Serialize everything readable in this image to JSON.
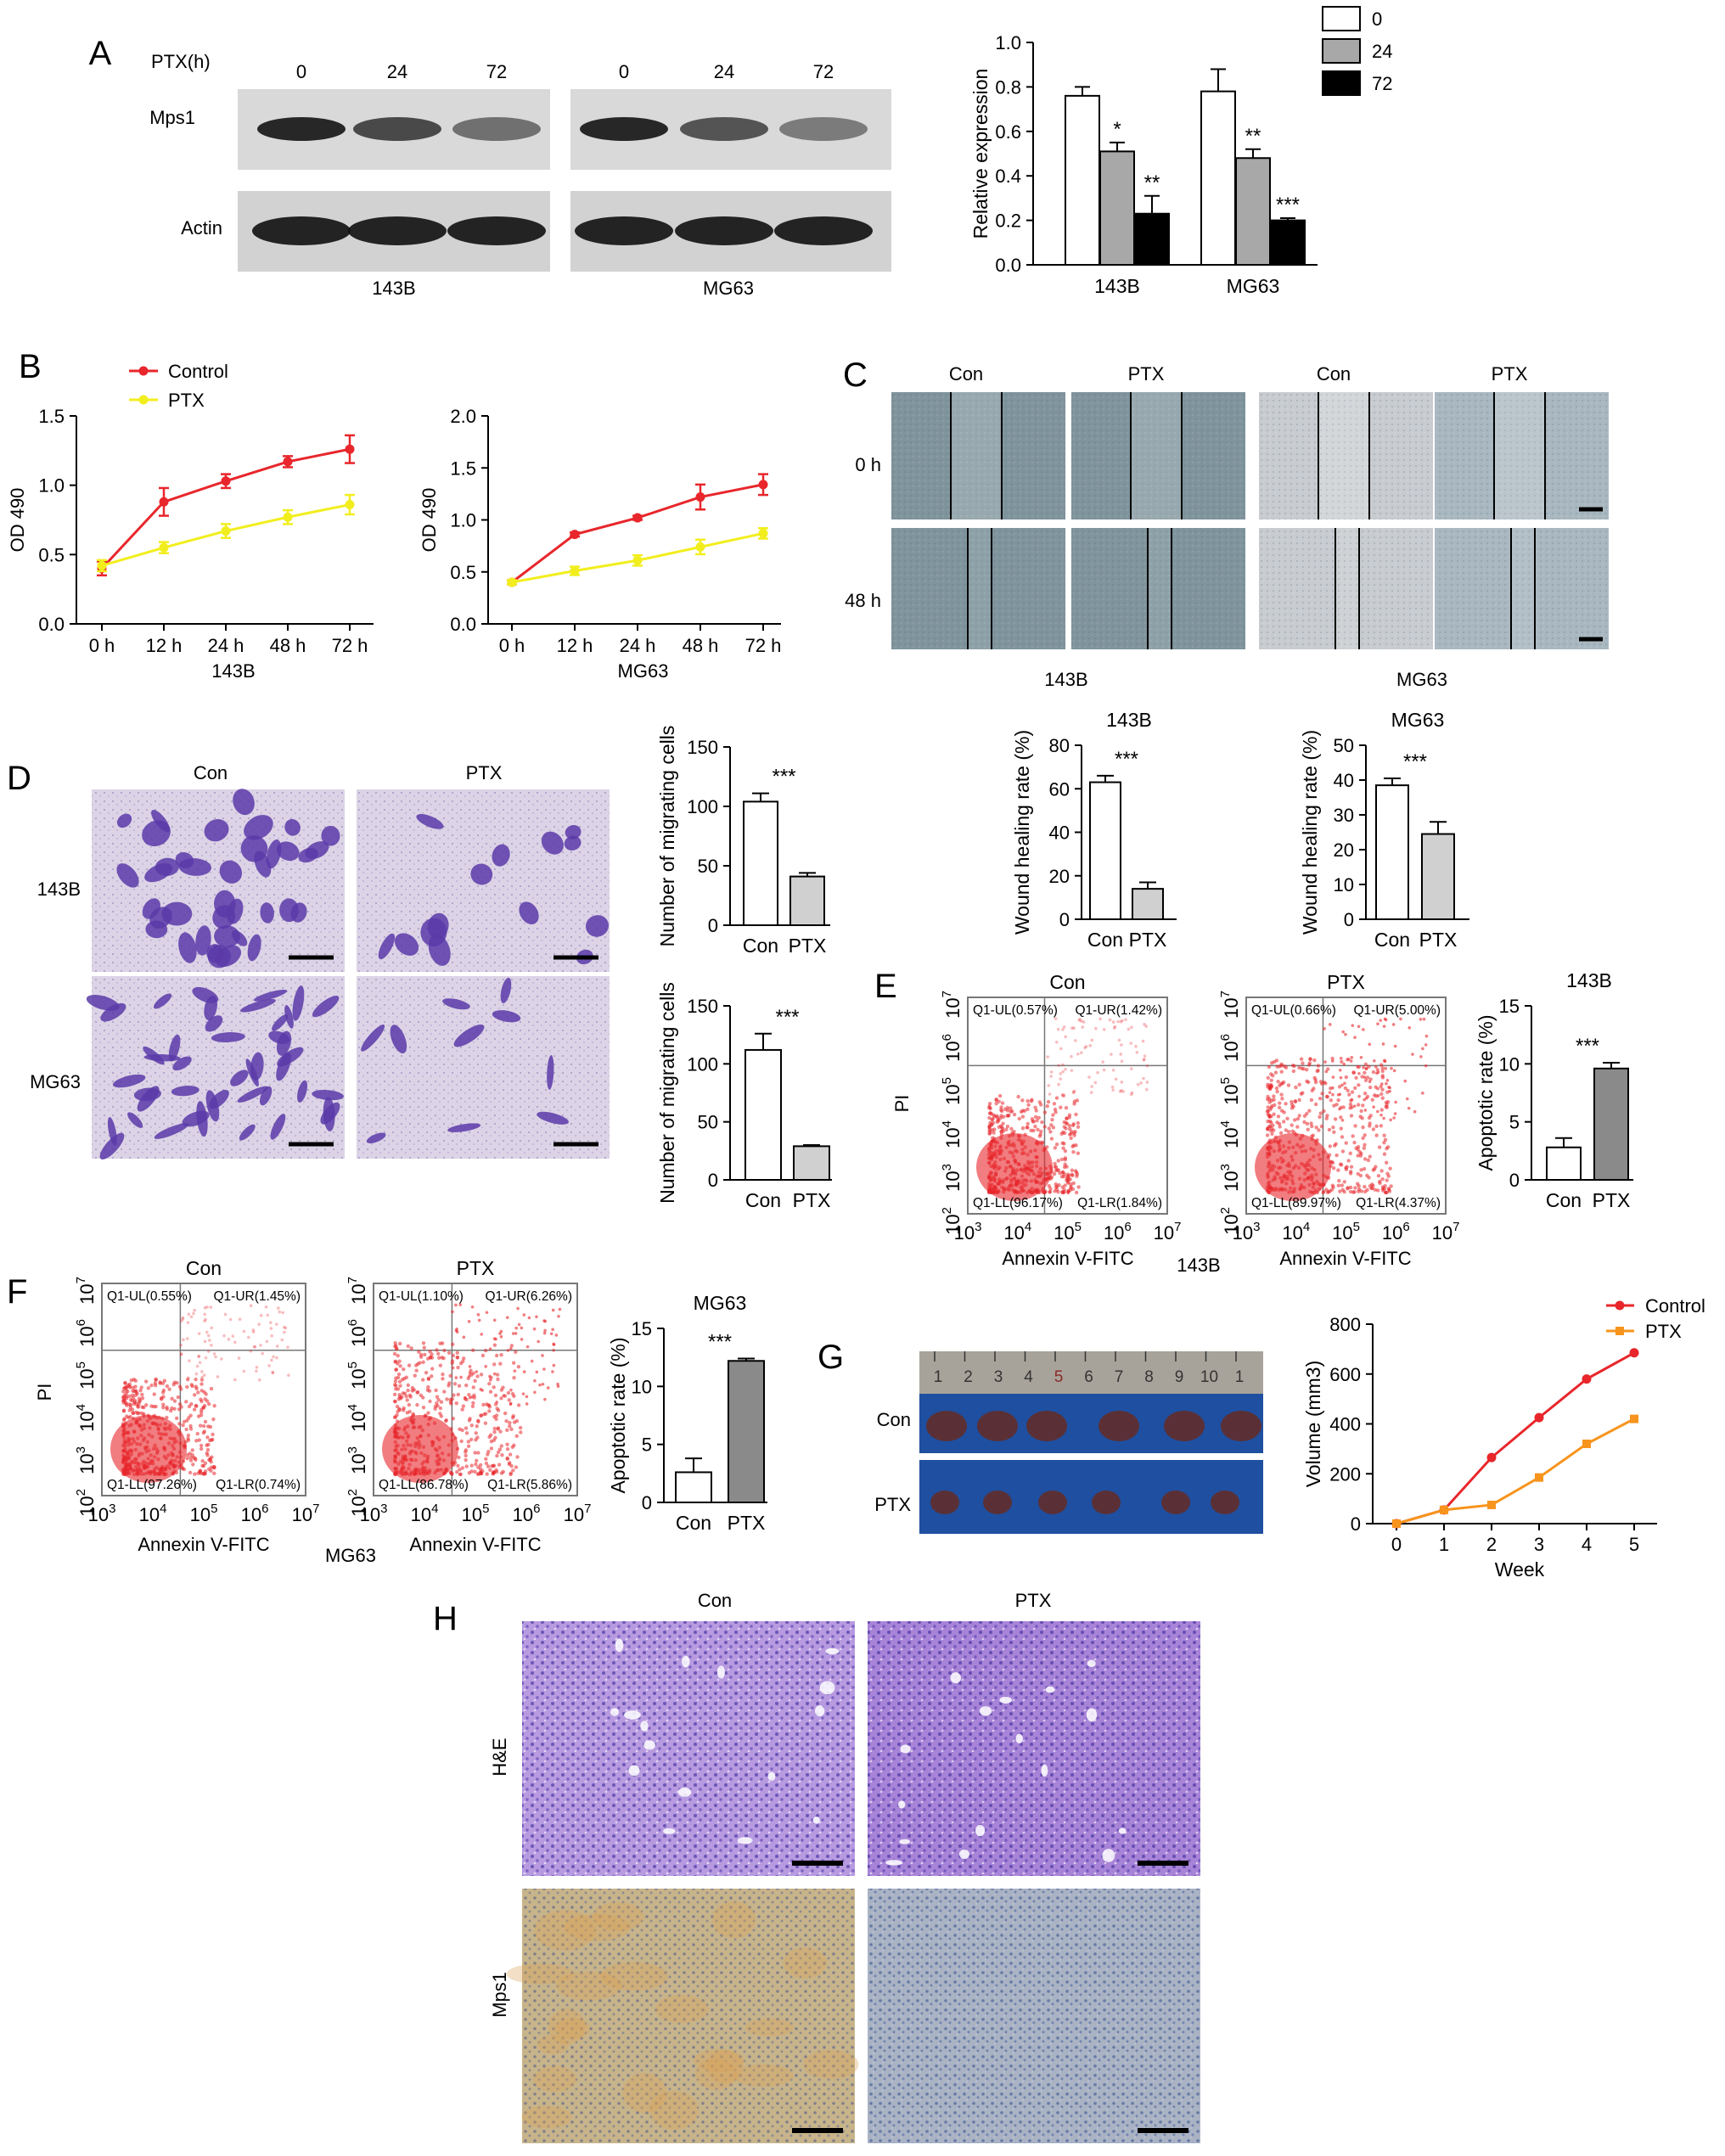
{
  "panels": {
    "A": {
      "letter": "A",
      "blot": {
        "ptx_label": "PTX(h)",
        "times": [
          "0",
          "24",
          "72"
        ],
        "rows": [
          "Mps1",
          "Actin"
        ],
        "cells": [
          "143B",
          "MG63"
        ],
        "mps1_intensity": [
          [
            1.0,
            0.7,
            0.35
          ],
          [
            1.0,
            0.6,
            0.25
          ]
        ]
      }
    },
    "B": {
      "letter": "B"
    },
    "C": {
      "letter": "C",
      "cols": [
        "Con",
        "PTX",
        "Con",
        "PTX"
      ],
      "rows": [
        "0 h",
        "48 h"
      ],
      "cells": [
        "143B",
        "MG63"
      ]
    },
    "D": {
      "letter": "D",
      "cols": [
        "Con",
        "PTX"
      ],
      "rows": [
        "143B",
        "MG63"
      ]
    },
    "E": {
      "letter": "E",
      "flow": [
        {
          "title": "Con",
          "UL": "Q1-UL(0.57%)",
          "UR": "Q1-UR(1.42%)",
          "LL": "Q1-LL(96.17%)",
          "LR": "Q1-LR(1.84%)"
        },
        {
          "title": "PTX",
          "UL": "Q1-UL(0.66%)",
          "UR": "Q1-UR(5.00%)",
          "LL": "Q1-LL(89.97%)",
          "LR": "Q1-LR(4.37%)"
        }
      ],
      "ylabel": "PI",
      "xlabel": "Annexin V-FITC",
      "cell": "143B"
    },
    "F": {
      "letter": "F",
      "flow": [
        {
          "title": "Con",
          "UL": "Q1-UL(0.55%)",
          "UR": "Q1-UR(1.45%)",
          "LL": "Q1-LL(97.26%)",
          "LR": "Q1-LR(0.74%)"
        },
        {
          "title": "PTX",
          "UL": "Q1-UL(1.10%)",
          "UR": "Q1-UR(6.26%)",
          "LL": "Q1-LL(86.78%)",
          "LR": "Q1-LR(5.86%)"
        }
      ],
      "ylabel": "PI",
      "xlabel": "Annexin V-FITC",
      "cell": "MG63"
    },
    "G": {
      "letter": "G",
      "ruler": [
        "1",
        "2",
        "3",
        "4",
        "5",
        "6",
        "7",
        "8",
        "9",
        "10",
        "1"
      ],
      "rows": [
        "Con",
        "PTX"
      ]
    },
    "H": {
      "letter": "H",
      "cols": [
        "Con",
        "PTX"
      ],
      "rows": [
        "H&E",
        "Mps1"
      ]
    }
  },
  "chart_data": [
    {
      "id": "A-bar",
      "type": "bar",
      "categories": [
        "143B",
        "MG63"
      ],
      "series": [
        {
          "name": "0",
          "values": [
            0.76,
            0.78
          ],
          "err": [
            0.04,
            0.1
          ],
          "sig": [
            "",
            ""
          ],
          "color": "#ffffff"
        },
        {
          "name": "24",
          "values": [
            0.51,
            0.48
          ],
          "err": [
            0.04,
            0.04
          ],
          "sig": [
            "*",
            "**"
          ],
          "color": "#a8a8a8"
        },
        {
          "name": "72",
          "values": [
            0.23,
            0.2
          ],
          "err": [
            0.08,
            0.01
          ],
          "sig": [
            "**",
            "***"
          ],
          "color": "#000000"
        }
      ],
      "ylabel": "Relative expression",
      "ylim": [
        0,
        1.0
      ],
      "yticks": [
        "0.0",
        "0.2",
        "0.4",
        "0.6",
        "0.8",
        "1.0"
      ],
      "legend": "top-right"
    },
    {
      "id": "B-143B",
      "type": "line",
      "x": [
        "0 h",
        "12 h",
        "24 h",
        "48 h",
        "72 h"
      ],
      "series": [
        {
          "name": "Control",
          "values": [
            0.4,
            0.88,
            1.03,
            1.17,
            1.26
          ],
          "err": [
            0.05,
            0.1,
            0.05,
            0.04,
            0.1
          ],
          "color": "#e8262b"
        },
        {
          "name": "PTX",
          "values": [
            0.42,
            0.55,
            0.67,
            0.77,
            0.86
          ],
          "err": [
            0.04,
            0.04,
            0.05,
            0.05,
            0.07
          ],
          "color": "#f2ee1e"
        }
      ],
      "xlabel": "143B",
      "ylabel": "OD 490",
      "ylim": [
        0,
        1.5
      ],
      "yticks": [
        "0.0",
        "0.5",
        "1.0",
        "1.5"
      ],
      "legend": "top-left"
    },
    {
      "id": "B-MG63",
      "type": "line",
      "x": [
        "0 h",
        "12 h",
        "24 h",
        "48 h",
        "72 h"
      ],
      "series": [
        {
          "name": "Control",
          "values": [
            0.4,
            0.86,
            1.02,
            1.22,
            1.34
          ],
          "err": [
            0.02,
            0.02,
            0.02,
            0.12,
            0.1
          ],
          "color": "#e8262b"
        },
        {
          "name": "PTX",
          "values": [
            0.4,
            0.51,
            0.61,
            0.74,
            0.87
          ],
          "err": [
            0.02,
            0.04,
            0.05,
            0.07,
            0.05
          ],
          "color": "#f2ee1e"
        }
      ],
      "xlabel": "MG63",
      "ylabel": "OD 490",
      "ylim": [
        0,
        2.0
      ],
      "yticks": [
        "0.0",
        "0.5",
        "1.0",
        "1.5",
        "2.0"
      ]
    },
    {
      "id": "C-143B",
      "type": "bar",
      "title": "143B",
      "categories": [
        "Con",
        "PTX"
      ],
      "values": [
        63,
        14
      ],
      "err": [
        3,
        3
      ],
      "sig": "***",
      "ylabel": "Wound healing rate (%)",
      "ylim": [
        0,
        80
      ],
      "yticks": [
        "0",
        "20",
        "40",
        "60",
        "80"
      ]
    },
    {
      "id": "C-MG63",
      "type": "bar",
      "title": "MG63",
      "categories": [
        "Con",
        "PTX"
      ],
      "values": [
        38.5,
        24.5
      ],
      "err": [
        2,
        3.5
      ],
      "sig": "***",
      "ylabel": "Wound healing rate (%)",
      "ylim": [
        0,
        50
      ],
      "yticks": [
        "0",
        "10",
        "20",
        "30",
        "40",
        "50"
      ]
    },
    {
      "id": "D-143B",
      "type": "bar",
      "categories": [
        "Con",
        "PTX"
      ],
      "values": [
        104,
        41
      ],
      "err": [
        7,
        3
      ],
      "sig": "***",
      "ylabel": "Number of migrating cells",
      "ylim": [
        0,
        150
      ],
      "yticks": [
        "0",
        "50",
        "100",
        "150"
      ]
    },
    {
      "id": "D-MG63",
      "type": "bar",
      "categories": [
        "Con",
        "PTX"
      ],
      "values": [
        112,
        29
      ],
      "err": [
        14,
        1
      ],
      "sig": "***",
      "ylabel": "Number of migrating cells",
      "ylim": [
        0,
        150
      ],
      "yticks": [
        "0",
        "50",
        "100",
        "150"
      ]
    },
    {
      "id": "E-bar",
      "type": "bar",
      "title": "143B",
      "categories": [
        "Con",
        "PTX"
      ],
      "values": [
        2.8,
        9.6
      ],
      "err": [
        0.8,
        0.5
      ],
      "sig": "***",
      "ylabel": "Apoptotic rate (%)",
      "ylim": [
        0,
        15
      ],
      "yticks": [
        "0",
        "5",
        "10",
        "15"
      ]
    },
    {
      "id": "F-bar",
      "type": "bar",
      "title": "MG63",
      "categories": [
        "Con",
        "PTX"
      ],
      "values": [
        2.6,
        12.2
      ],
      "err": [
        1.2,
        0.2
      ],
      "sig": "***",
      "ylabel": "Apoptotic rate (%)",
      "ylim": [
        0,
        15
      ],
      "yticks": [
        "0",
        "5",
        "10",
        "15"
      ]
    },
    {
      "id": "G-line",
      "type": "line",
      "x": [
        "0",
        "1",
        "2",
        "3",
        "4",
        "5"
      ],
      "series": [
        {
          "name": "Control",
          "values": [
            0,
            55,
            265,
            425,
            580,
            685
          ],
          "color": "#e8262b",
          "marker": "circle"
        },
        {
          "name": "PTX",
          "values": [
            0,
            55,
            75,
            185,
            320,
            420
          ],
          "color": "#f7941d",
          "marker": "square"
        }
      ],
      "xlabel": "Week",
      "ylabel": "Volume (mm3)",
      "ylim": [
        0,
        800
      ],
      "yticks": [
        "0",
        "200",
        "400",
        "600",
        "800"
      ],
      "legend": "top-right"
    }
  ]
}
